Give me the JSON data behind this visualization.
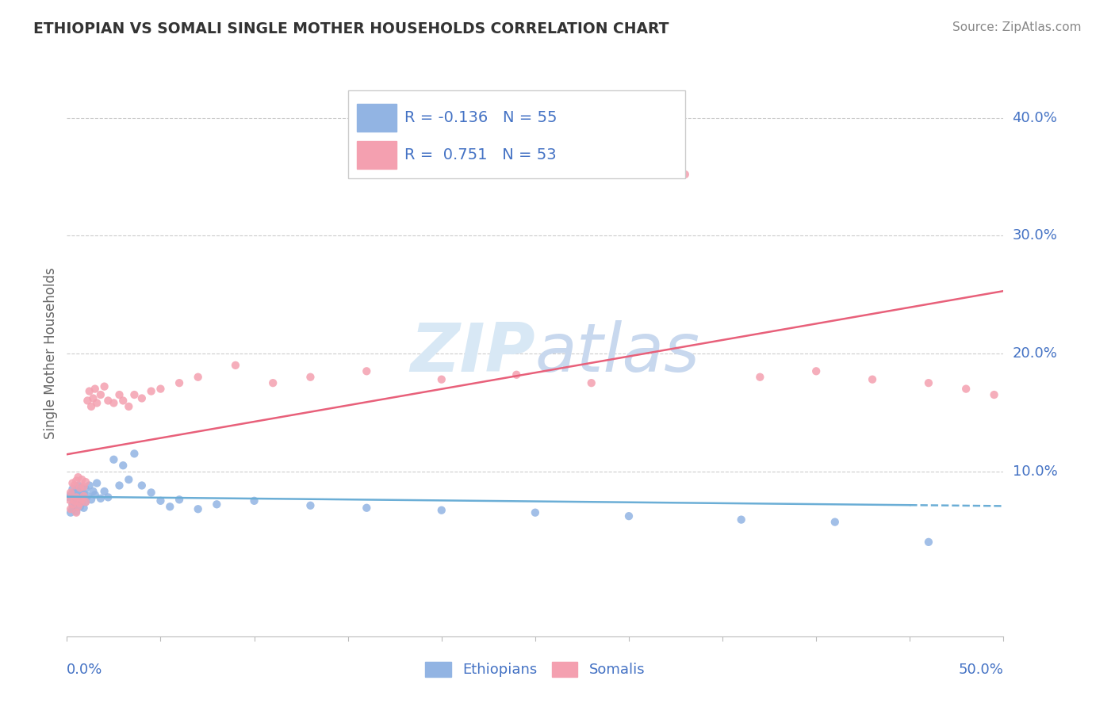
{
  "title": "ETHIOPIAN VS SOMALI SINGLE MOTHER HOUSEHOLDS CORRELATION CHART",
  "source": "Source: ZipAtlas.com",
  "ylabel": "Single Mother Households",
  "y_ticks": [
    0.0,
    0.1,
    0.2,
    0.3,
    0.4
  ],
  "y_tick_labels": [
    "",
    "10.0%",
    "20.0%",
    "30.0%",
    "40.0%"
  ],
  "x_lim": [
    0.0,
    0.5
  ],
  "y_lim": [
    -0.04,
    0.44
  ],
  "ethiopian_R": -0.136,
  "ethiopian_N": 55,
  "somali_R": 0.751,
  "somali_N": 53,
  "ethiopian_color": "#92b4e3",
  "somali_color": "#f4a0b0",
  "ethiopian_line_color": "#6baed6",
  "somali_line_color": "#e8607a",
  "background_color": "#ffffff",
  "grid_color": "#cccccc",
  "title_color": "#333333",
  "tick_label_color": "#4472c4",
  "watermark_color": "#d8e8f5",
  "ethiopian_x": [
    0.001,
    0.002,
    0.002,
    0.003,
    0.003,
    0.003,
    0.004,
    0.004,
    0.004,
    0.005,
    0.005,
    0.005,
    0.005,
    0.006,
    0.006,
    0.006,
    0.007,
    0.007,
    0.007,
    0.008,
    0.008,
    0.009,
    0.009,
    0.01,
    0.01,
    0.011,
    0.012,
    0.013,
    0.014,
    0.015,
    0.016,
    0.018,
    0.02,
    0.022,
    0.025,
    0.028,
    0.03,
    0.033,
    0.036,
    0.04,
    0.045,
    0.05,
    0.055,
    0.06,
    0.07,
    0.08,
    0.1,
    0.13,
    0.16,
    0.2,
    0.25,
    0.3,
    0.36,
    0.41,
    0.46
  ],
  "ethiopian_y": [
    0.078,
    0.08,
    0.065,
    0.085,
    0.072,
    0.068,
    0.078,
    0.082,
    0.07,
    0.076,
    0.08,
    0.084,
    0.066,
    0.088,
    0.074,
    0.078,
    0.083,
    0.079,
    0.07,
    0.086,
    0.073,
    0.081,
    0.069,
    0.085,
    0.074,
    0.079,
    0.088,
    0.076,
    0.083,
    0.08,
    0.09,
    0.077,
    0.083,
    0.078,
    0.11,
    0.088,
    0.105,
    0.093,
    0.115,
    0.088,
    0.082,
    0.075,
    0.07,
    0.076,
    0.068,
    0.072,
    0.075,
    0.071,
    0.069,
    0.067,
    0.065,
    0.062,
    0.059,
    0.057,
    0.04
  ],
  "somali_x": [
    0.001,
    0.002,
    0.002,
    0.003,
    0.003,
    0.004,
    0.004,
    0.005,
    0.005,
    0.005,
    0.006,
    0.006,
    0.007,
    0.007,
    0.008,
    0.008,
    0.009,
    0.009,
    0.01,
    0.01,
    0.011,
    0.012,
    0.013,
    0.014,
    0.015,
    0.016,
    0.018,
    0.02,
    0.022,
    0.025,
    0.028,
    0.03,
    0.033,
    0.036,
    0.04,
    0.045,
    0.05,
    0.06,
    0.07,
    0.09,
    0.11,
    0.13,
    0.16,
    0.2,
    0.24,
    0.28,
    0.33,
    0.37,
    0.4,
    0.43,
    0.46,
    0.48,
    0.495
  ],
  "somali_y": [
    0.076,
    0.082,
    0.068,
    0.09,
    0.072,
    0.088,
    0.075,
    0.092,
    0.078,
    0.065,
    0.095,
    0.07,
    0.086,
    0.073,
    0.093,
    0.076,
    0.087,
    0.079,
    0.091,
    0.074,
    0.16,
    0.168,
    0.155,
    0.162,
    0.17,
    0.158,
    0.165,
    0.172,
    0.16,
    0.158,
    0.165,
    0.16,
    0.155,
    0.165,
    0.162,
    0.168,
    0.17,
    0.175,
    0.18,
    0.19,
    0.175,
    0.18,
    0.185,
    0.178,
    0.182,
    0.175,
    0.352,
    0.18,
    0.185,
    0.178,
    0.175,
    0.17,
    0.165
  ]
}
